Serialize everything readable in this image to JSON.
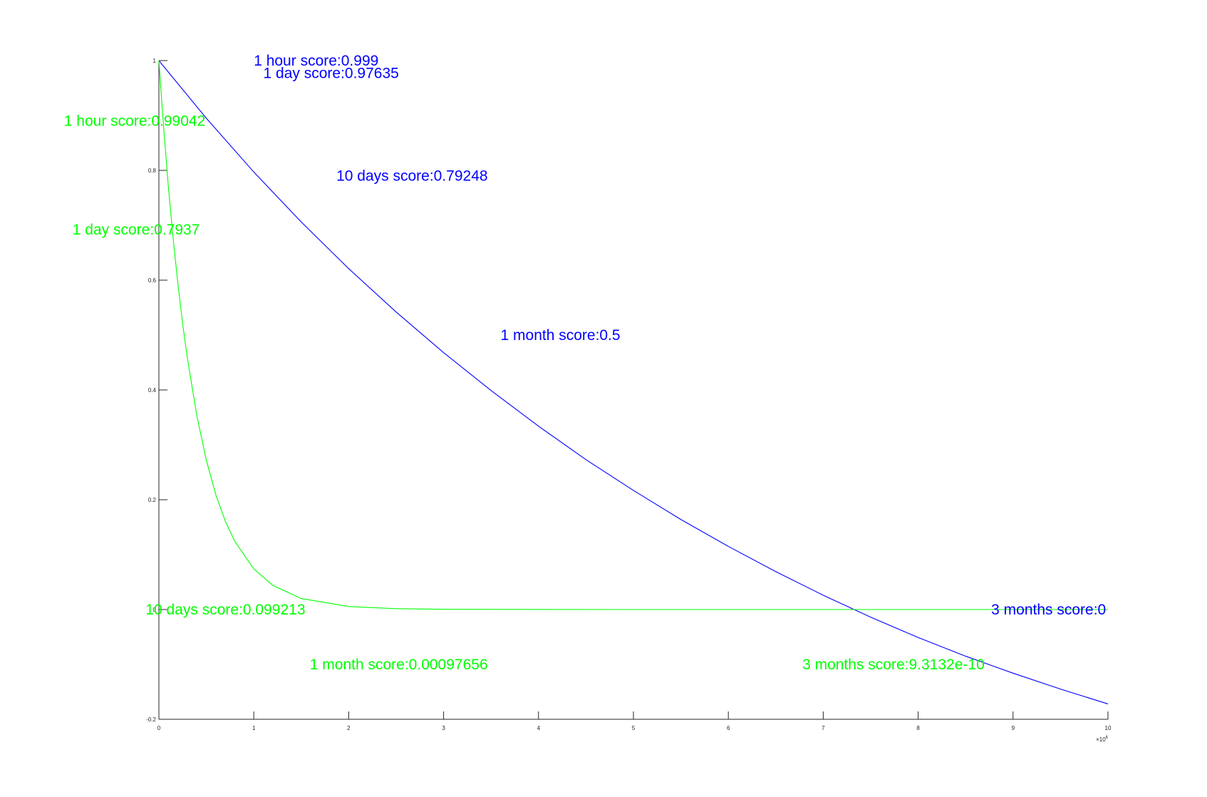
{
  "chart_data": {
    "type": "line",
    "title": "",
    "xlabel": "",
    "ylabel": "",
    "xlim": [
      0,
      10000000
    ],
    "ylim": [
      -0.2,
      1
    ],
    "x_exponent_label": "×10",
    "x_exponent_power": "6",
    "grid": false,
    "x_ticks": [
      {
        "value": 0,
        "label": "0"
      },
      {
        "value": 1000000,
        "label": "1"
      },
      {
        "value": 2000000,
        "label": "2"
      },
      {
        "value": 3000000,
        "label": "3"
      },
      {
        "value": 4000000,
        "label": "4"
      },
      {
        "value": 5000000,
        "label": "5"
      },
      {
        "value": 6000000,
        "label": "6"
      },
      {
        "value": 7000000,
        "label": "7"
      },
      {
        "value": 8000000,
        "label": "8"
      },
      {
        "value": 9000000,
        "label": "9"
      },
      {
        "value": 10000000,
        "label": "10"
      }
    ],
    "y_ticks": [
      {
        "value": -0.2,
        "label": "-0.2"
      },
      {
        "value": 0,
        "label": "0"
      },
      {
        "value": 0.2,
        "label": "0.2"
      },
      {
        "value": 0.4,
        "label": "0.4"
      },
      {
        "value": 0.6,
        "label": "0.6"
      },
      {
        "value": 0.8,
        "label": "0.8"
      },
      {
        "value": 1,
        "label": "1"
      }
    ],
    "series": [
      {
        "color": "#0000ff",
        "x": [
          0,
          500000,
          1000000,
          1500000,
          2000000,
          2500000,
          3000000,
          3500000,
          4000000,
          4500000,
          5000000,
          5500000,
          6000000,
          6500000,
          7000000,
          7500000,
          8000000,
          8500000,
          9000000,
          9500000,
          10000000
        ],
        "y": [
          1.0,
          0.895,
          0.797,
          0.706,
          0.621,
          0.542,
          0.468,
          0.399,
          0.334,
          0.273,
          0.217,
          0.164,
          0.115,
          0.069,
          0.026,
          -0.014,
          -0.051,
          -0.085,
          -0.116,
          -0.145,
          -0.172
        ]
      },
      {
        "color": "#00ff00",
        "x": [
          0,
          50000,
          100000,
          150000,
          200000,
          250000,
          300000,
          400000,
          500000,
          600000,
          700000,
          800000,
          1000000,
          1200000,
          1500000,
          2000000,
          2500000,
          3000000,
          4000000,
          5000000,
          6000000,
          7000000,
          8000000,
          9000000,
          10000000
        ],
        "y": [
          1.0,
          0.878,
          0.77,
          0.676,
          0.594,
          0.521,
          0.458,
          0.353,
          0.272,
          0.209,
          0.161,
          0.124,
          0.074,
          0.044,
          0.02,
          0.0054,
          0.0015,
          0.0004,
          3e-05,
          0.0,
          0.0,
          0.0,
          0.0,
          0.0,
          0.0
        ]
      }
    ],
    "annotations": [
      {
        "text": "1 hour score:0.999",
        "color": "#0000ff",
        "x": 1000000,
        "y": 1.0
      },
      {
        "text": "1 day score:0.97635",
        "color": "#0000ff",
        "x": 1100000,
        "y": 0.977
      },
      {
        "text": "10 days score:0.79248",
        "color": "#0000ff",
        "x": 1870000,
        "y": 0.79
      },
      {
        "text": "1 month score:0.5",
        "color": "#0000ff",
        "x": 3600000,
        "y": 0.5
      },
      {
        "text": "3 months score:0",
        "color": "#0000ff",
        "x": 8770000,
        "y": 0.0
      },
      {
        "text": "1 hour score:0.99042",
        "color": "#00ff00",
        "x": -1000000,
        "y": 0.89
      },
      {
        "text": "1 day score:0.7937",
        "color": "#00ff00",
        "x": -910000,
        "y": 0.692
      },
      {
        "text": "10 days score:0.099213",
        "color": "#00ff00",
        "x": -140000,
        "y": 0.0
      },
      {
        "text": "1 month score:0.00097656",
        "color": "#00ff00",
        "x": 1590000,
        "y": -0.1
      },
      {
        "text": "3 months score:9.3132e-10",
        "color": "#00ff00",
        "x": 6780000,
        "y": -0.1
      }
    ]
  }
}
